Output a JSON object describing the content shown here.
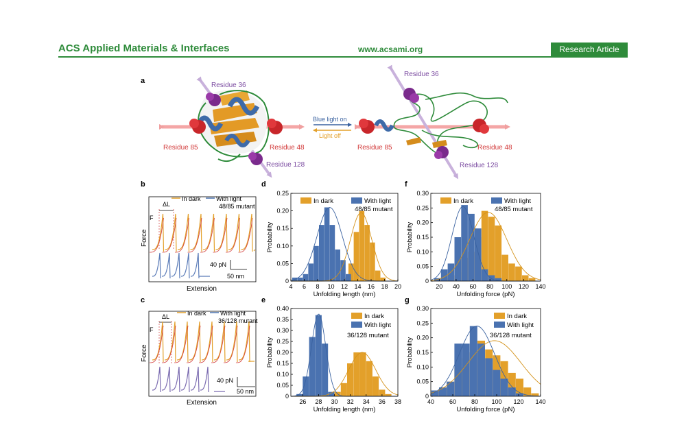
{
  "header": {
    "journal": "ACS Applied Materials & Interfaces",
    "website": "www.acsami.org",
    "badge": "Research Article",
    "color": "#2e8b3a"
  },
  "panel_a": {
    "label": "a",
    "switch_on": "Blue light on",
    "switch_off": "Light off",
    "left": {
      "r36": "Residue 36",
      "r85": "Residue 85",
      "r48": "Residue 48",
      "r128": "Residue 128"
    },
    "right": {
      "r36": "Residue 36",
      "r85": "Residue 85",
      "r48": "Residue 48",
      "r128": "Residue 128"
    }
  },
  "panel_b": {
    "label": "b",
    "legend_dark": "In dark",
    "legend_light": "With light",
    "mutant": "48/85 mutant",
    "dL": "ΔL",
    "F": "F",
    "ylabel": "Force",
    "xlabel": "Extension",
    "scale_force": "40 pN",
    "scale_ext": "50 nm"
  },
  "panel_c": {
    "label": "c",
    "legend_dark": "In dark",
    "legend_light": "With light",
    "mutant": "36/128 mutant",
    "dL": "ΔL",
    "F": "F",
    "ylabel": "Force",
    "xlabel": "Extension",
    "scale_force": "40 pN",
    "scale_ext": "50 nm"
  },
  "colors": {
    "dark": "#e3a02a",
    "light": "#4a72b0",
    "dark_line": "#d4921a",
    "light_line": "#3a62a0"
  },
  "chart_data": [
    {
      "id": "d",
      "label": "d",
      "type": "bar",
      "title": "",
      "xlabel": "Unfolding length (nm)",
      "ylabel": "Probability",
      "annotation": "48/85 mutant",
      "xlim": [
        4,
        20
      ],
      "ylim": [
        0,
        0.25
      ],
      "xticks": [
        "4",
        "6",
        "8",
        "10",
        "12",
        "14",
        "16",
        "18",
        "20"
      ],
      "yticks": [
        "0",
        "0.05",
        "0.10",
        "0.15",
        "0.20",
        "0.25"
      ],
      "bin_width": 0.8,
      "series": [
        {
          "name": "In dark",
          "x": [
            12.2,
            13.0,
            13.8,
            14.6,
            15.4,
            16.2,
            17.0,
            17.8
          ],
          "values": [
            0.01,
            0.05,
            0.14,
            0.2,
            0.16,
            0.11,
            0.03,
            0.01
          ]
        },
        {
          "name": "With light",
          "x": [
            4.6,
            5.4,
            6.2,
            7.0,
            7.8,
            8.6,
            9.4,
            10.2,
            11.0,
            11.8,
            12.6
          ],
          "values": [
            0.01,
            0.01,
            0.02,
            0.05,
            0.1,
            0.16,
            0.21,
            0.16,
            0.09,
            0.06,
            0.02
          ]
        }
      ],
      "fits": [
        {
          "series": "In dark",
          "mean": 14.5,
          "sd": 1.6,
          "peak": 0.195
        },
        {
          "series": "With light",
          "mean": 9.8,
          "sd": 1.9,
          "peak": 0.21
        }
      ],
      "legend": "top"
    },
    {
      "id": "e",
      "label": "e",
      "type": "bar",
      "title": "",
      "xlabel": "Unfolding length (nm)",
      "ylabel": "Probability",
      "annotation": "36/128 mutant",
      "xlim": [
        24.5,
        38
      ],
      "ylim": [
        0,
        0.4
      ],
      "xticks": [
        "26",
        "28",
        "30",
        "32",
        "34",
        "36",
        "38"
      ],
      "yticks": [
        "0",
        "0.05",
        "0.10",
        "0.15",
        "0.20",
        "0.25",
        "0.30",
        "0.35",
        "0.40"
      ],
      "bin_width": 0.8,
      "series": [
        {
          "name": "In dark",
          "x": [
            29.6,
            30.4,
            31.2,
            32.0,
            32.8,
            33.6,
            34.4,
            35.2,
            36.0,
            36.8
          ],
          "values": [
            0.01,
            0.02,
            0.06,
            0.15,
            0.2,
            0.2,
            0.16,
            0.09,
            0.03,
            0.01
          ]
        },
        {
          "name": "With light",
          "x": [
            25.6,
            26.4,
            27.2,
            28.0,
            28.8,
            29.6
          ],
          "values": [
            0.01,
            0.09,
            0.27,
            0.37,
            0.24,
            0.02
          ]
        }
      ],
      "fits": [
        {
          "series": "In dark",
          "mean": 33.5,
          "sd": 1.7,
          "peak": 0.2
        },
        {
          "series": "With light",
          "mean": 28.0,
          "sd": 0.9,
          "peak": 0.375
        }
      ],
      "legend": "top-right"
    },
    {
      "id": "f",
      "label": "f",
      "type": "bar",
      "title": "",
      "xlabel": "Unfolding force (pN)",
      "ylabel": "Probability",
      "annotation": "48/85 mutant",
      "xlim": [
        10,
        140
      ],
      "ylim": [
        0,
        0.3
      ],
      "xticks": [
        "20",
        "40",
        "60",
        "80",
        "100",
        "120",
        "140"
      ],
      "yticks": [
        "0",
        "0.05",
        "0.10",
        "0.15",
        "0.20",
        "0.25",
        "0.30"
      ],
      "bin_width": 8,
      "series": [
        {
          "name": "In dark",
          "x": [
            26,
            34,
            42,
            50,
            58,
            66,
            74,
            82,
            90,
            98,
            106,
            114,
            122,
            130
          ],
          "values": [
            0.01,
            0.02,
            0.03,
            0.08,
            0.1,
            0.15,
            0.24,
            0.22,
            0.19,
            0.09,
            0.06,
            0.05,
            0.02,
            0.01
          ]
        },
        {
          "name": "With light",
          "x": [
            18,
            26,
            34,
            42,
            50,
            58,
            66,
            74,
            82,
            90
          ],
          "values": [
            0.01,
            0.04,
            0.06,
            0.15,
            0.26,
            0.23,
            0.18,
            0.04,
            0.02,
            0.01
          ]
        }
      ],
      "fits": [
        {
          "series": "In dark",
          "mean": 78,
          "sd": 22,
          "peak": 0.235
        },
        {
          "series": "With light",
          "mean": 48,
          "sd": 13,
          "peak": 0.255
        }
      ],
      "legend": "top"
    },
    {
      "id": "g",
      "label": "g",
      "type": "bar",
      "title": "",
      "xlabel": "Unfolding force (pN)",
      "ylabel": "Probability",
      "annotation": "36/128 mutant",
      "xlim": [
        40,
        140
      ],
      "ylim": [
        0,
        0.3
      ],
      "xticks": [
        "40",
        "60",
        "80",
        "100",
        "120",
        "140"
      ],
      "yticks": [
        "0",
        "0.05",
        "0.10",
        "0.15",
        "0.20",
        "0.25",
        "0.30"
      ],
      "bin_width": 7,
      "series": [
        {
          "name": "In dark",
          "x": [
            44,
            51,
            58,
            65,
            72,
            79,
            86,
            93,
            100,
            107,
            114,
            121,
            128,
            135
          ],
          "values": [
            0.02,
            0.03,
            0.05,
            0.1,
            0.13,
            0.15,
            0.19,
            0.16,
            0.14,
            0.12,
            0.08,
            0.06,
            0.03,
            0.01
          ]
        },
        {
          "name": "With light",
          "x": [
            44,
            51,
            58,
            65,
            72,
            79,
            86,
            93,
            100,
            107,
            114,
            121
          ],
          "values": [
            0.02,
            0.03,
            0.05,
            0.18,
            0.18,
            0.24,
            0.18,
            0.13,
            0.09,
            0.06,
            0.03,
            0.01
          ]
        }
      ],
      "fits": [
        {
          "series": "In dark",
          "mean": 98,
          "sd": 24,
          "peak": 0.19
        },
        {
          "series": "With light",
          "mean": 82,
          "sd": 16,
          "peak": 0.24
        }
      ],
      "legend": "top-right"
    }
  ]
}
